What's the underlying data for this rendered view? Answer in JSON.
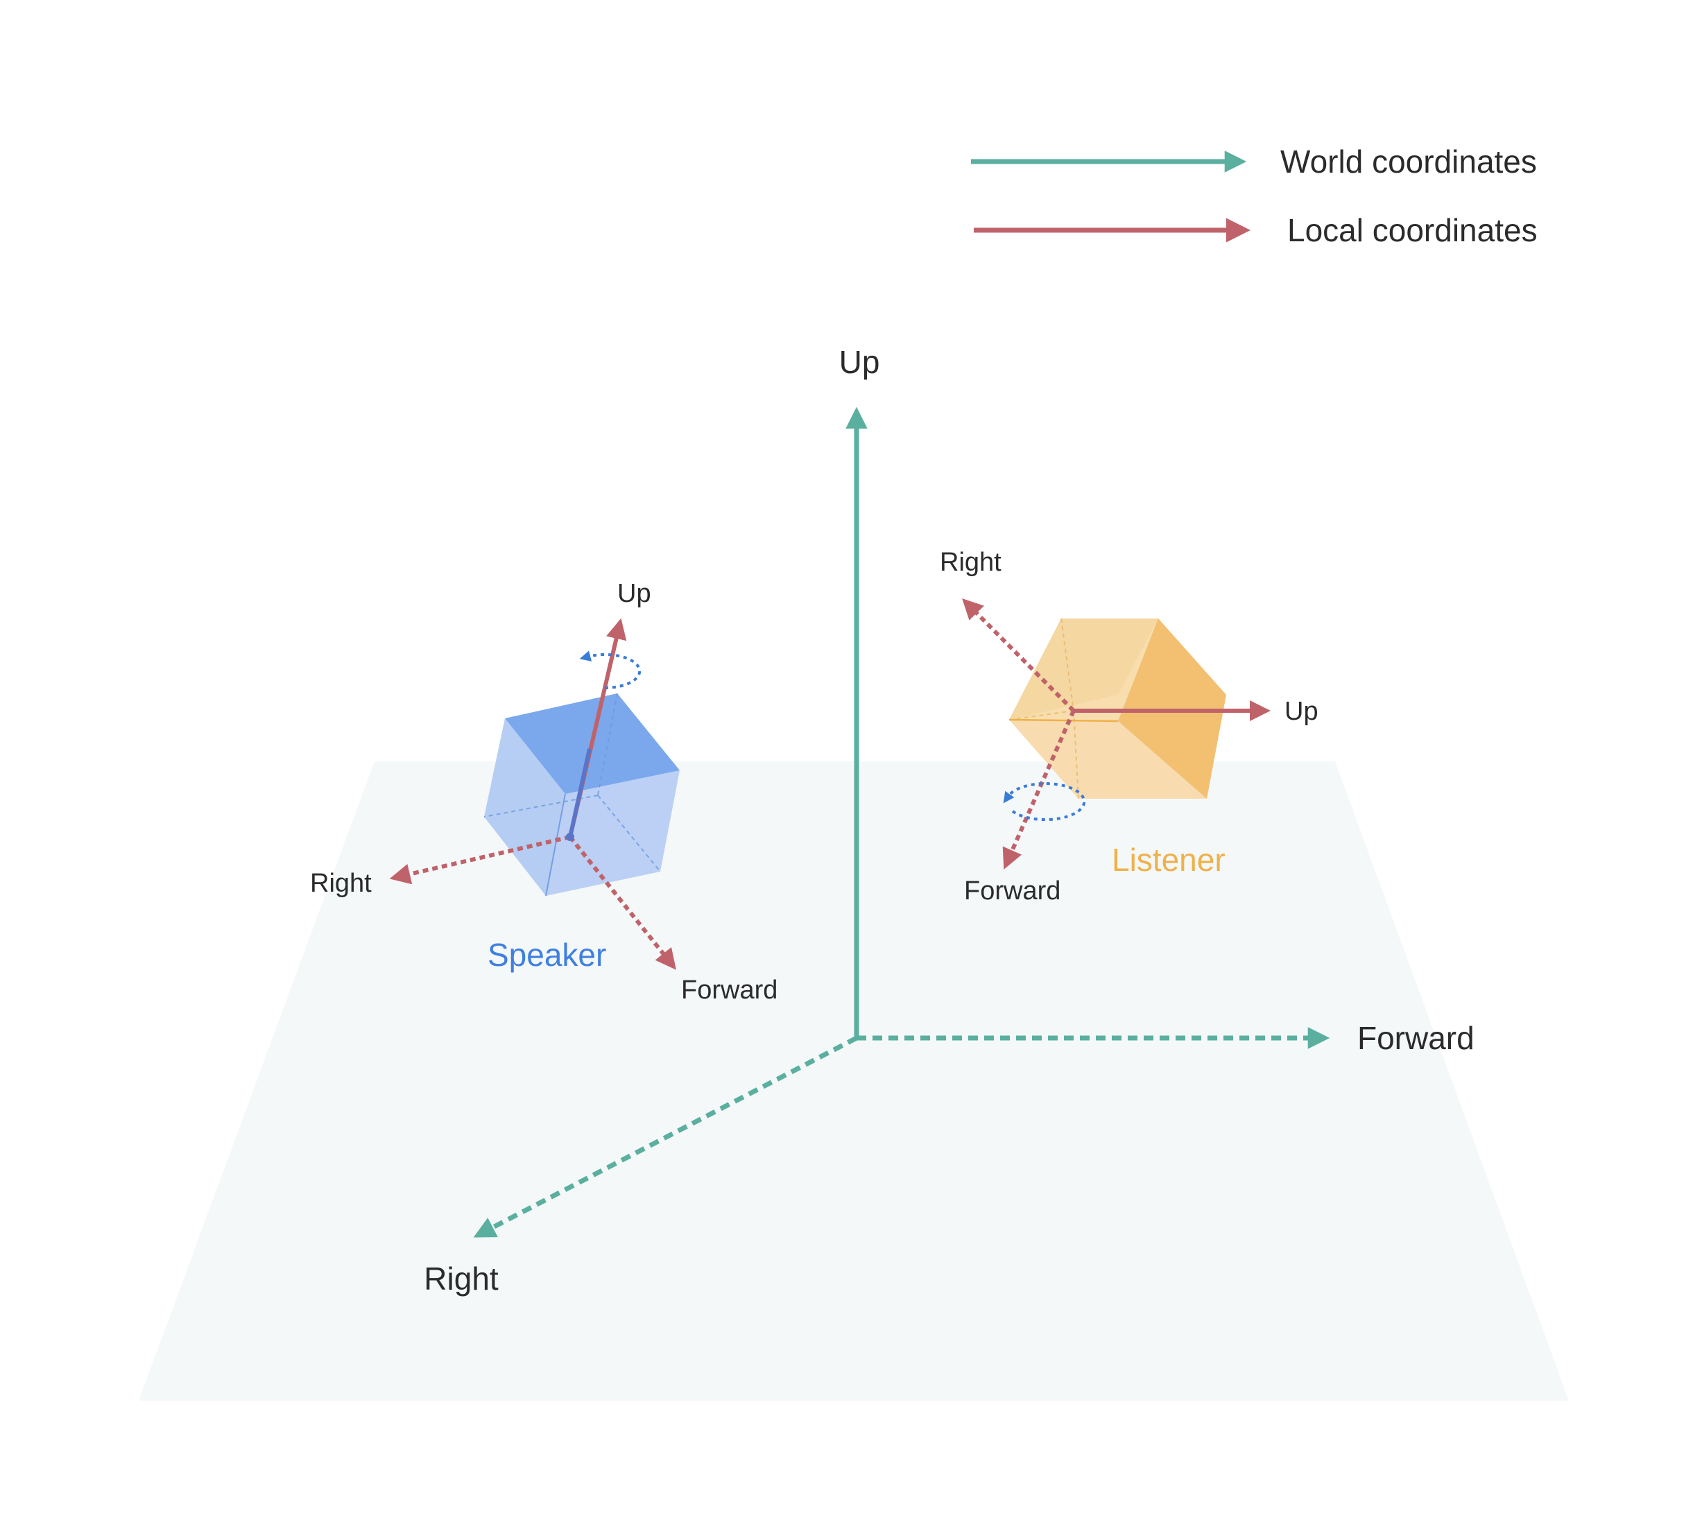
{
  "colors": {
    "world": "#5aaf9f",
    "local": "#c0626a",
    "speaker": "#3f7fe0",
    "listener": "#f0b04a",
    "rotation": "#3a7bd5",
    "floor": "#f4f8f9"
  },
  "legend": {
    "world": "World coordinates",
    "local": "Local coordinates"
  },
  "world_axes": {
    "up": "Up",
    "forward": "Forward",
    "right": "Right"
  },
  "speaker": {
    "label": "Speaker",
    "up": "Up",
    "right": "Right",
    "forward": "Forward"
  },
  "listener": {
    "label": "Listener",
    "right": "Right",
    "up": "Up",
    "forward": "Forward"
  }
}
